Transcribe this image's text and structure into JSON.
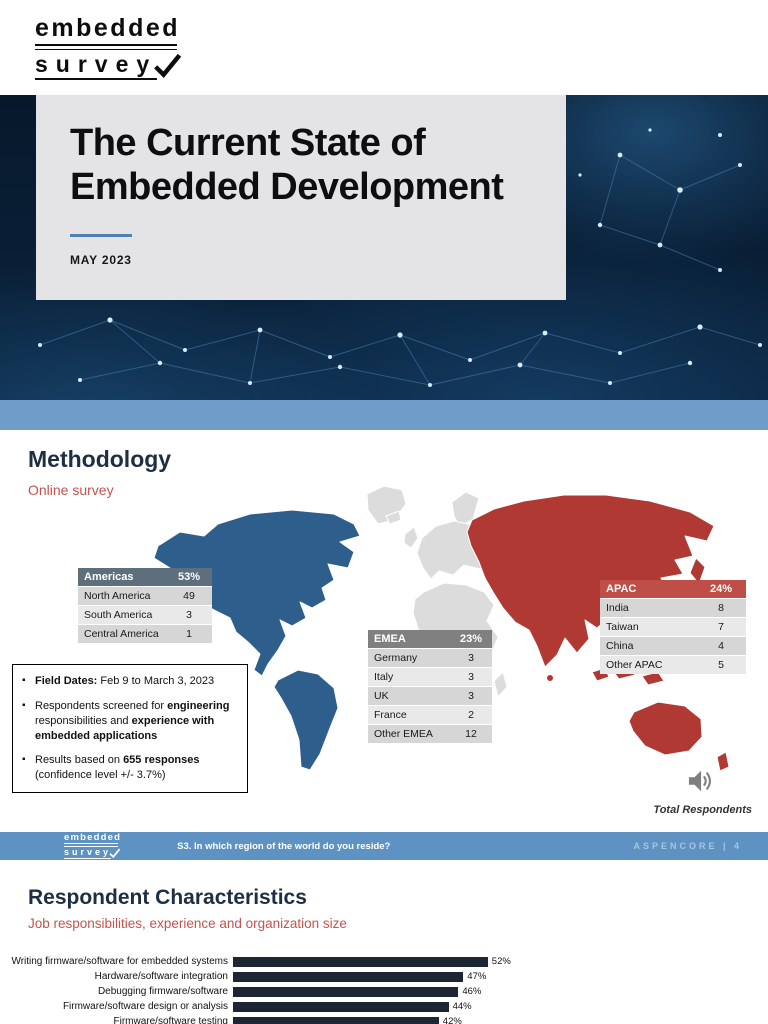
{
  "logo": {
    "line1": "embedded",
    "line2": "survey"
  },
  "cover": {
    "title_line1": "The Current State of",
    "title_line2": "Embedded Development",
    "date": "MAY 2023"
  },
  "methodology": {
    "heading": "Methodology",
    "subheading": "Online survey",
    "tables": {
      "americas": {
        "name": "Americas",
        "percent": "53%",
        "rows": [
          [
            "North America",
            "49"
          ],
          [
            "South America",
            "3"
          ],
          [
            "Central America",
            "1"
          ]
        ]
      },
      "emea": {
        "name": "EMEA",
        "percent": "23%",
        "rows": [
          [
            "Germany",
            "3"
          ],
          [
            "Italy",
            "3"
          ],
          [
            "UK",
            "3"
          ],
          [
            "France",
            "2"
          ],
          [
            "Other EMEA",
            "12"
          ]
        ]
      },
      "apac": {
        "name": "APAC",
        "percent": "24%",
        "rows": [
          [
            "India",
            "8"
          ],
          [
            "Taiwan",
            "7"
          ],
          [
            "China",
            "4"
          ],
          [
            "Other APAC",
            "5"
          ]
        ]
      }
    },
    "bullets": [
      [
        {
          "t": "Field Dates:",
          "b": true
        },
        {
          "t": "  Feb 9 to March 3, 2023",
          "b": false
        }
      ],
      [
        {
          "t": "Respondents screened for ",
          "b": false
        },
        {
          "t": "engineering",
          "b": true
        },
        {
          "t": " responsibilities and ",
          "b": false
        },
        {
          "t": "experience with embedded applications",
          "b": true
        }
      ],
      [
        {
          "t": "Results based on ",
          "b": false
        },
        {
          "t": "655 responses",
          "b": true
        },
        {
          "t": " (confidence level +/- 3.7%)",
          "b": false
        }
      ]
    ],
    "total_respondents_label": "Total Respondents"
  },
  "footer": {
    "question": "S3. In which region of the world do you reside?",
    "page_marker": "ASPENCORE | 4"
  },
  "respondents": {
    "heading": "Respondent Characteristics",
    "subheading": "Job responsibilities, experience and organization size"
  },
  "chart_data": {
    "type": "bar",
    "orientation": "horizontal",
    "categories": [
      "Writing firmware/software for embedded systems",
      "Hardware/software integration",
      "Debugging firmware/software",
      "Firmware/software design or analysis",
      "Firmware/software testing"
    ],
    "values": [
      52,
      47,
      46,
      44,
      42
    ],
    "value_labels": [
      "52%",
      "47%",
      "46%",
      "44%",
      "42%"
    ],
    "xlim": [
      0,
      100
    ],
    "legend": false,
    "grid": false
  },
  "colors": {
    "heading-navy": "#1e2e45",
    "accent-red": "#c4534d",
    "map-blue": "#2e5f8c",
    "map-red": "#b03a33",
    "map-gray": "#dcdcdc",
    "band-blue": "#6f9cc9",
    "footer-blue": "#5e92c3",
    "bar-navy": "#1b2534",
    "table-americas-header": "#5d6e7d",
    "table-emea-header": "#808080",
    "table-apac-header": "#bf4e48",
    "accent-line-blue": "#4f81b3"
  }
}
